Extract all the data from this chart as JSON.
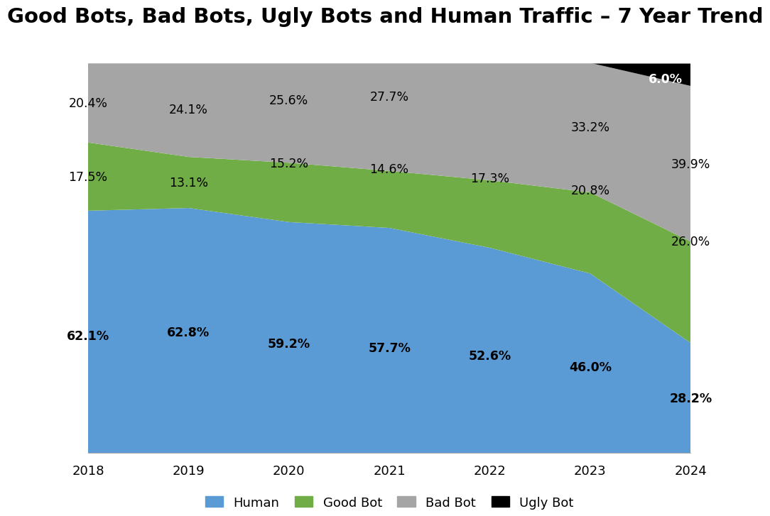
{
  "title": "Good Bots, Bad Bots, Ugly Bots and Human Traffic – 7 Year Trend",
  "years": [
    2018,
    2019,
    2020,
    2021,
    2022,
    2023,
    2024
  ],
  "human": [
    62.1,
    62.8,
    59.2,
    57.7,
    52.6,
    46.0,
    28.2
  ],
  "good_bot": [
    17.5,
    13.1,
    15.2,
    14.6,
    17.3,
    20.8,
    26.0
  ],
  "bad_bot": [
    20.4,
    24.1,
    25.6,
    27.7,
    30.1,
    33.2,
    39.9
  ],
  "ugly_bot": [
    0.0,
    0.0,
    0.0,
    0.0,
    0.0,
    0.0,
    6.0
  ],
  "human_color": "#5B9BD5",
  "good_bot_color": "#70AD47",
  "bad_bot_color": "#A5A5A5",
  "ugly_bot_color": "#000000",
  "bg_color": "#FFFFFF",
  "title_fontsize": 21,
  "label_fontsize": 12.5,
  "axis_label_fontsize": 13,
  "human_labels": [
    [
      2018,
      "62.1%"
    ],
    [
      2019,
      "62.8%"
    ],
    [
      2020,
      "59.2%"
    ],
    [
      2021,
      "57.7%"
    ],
    [
      2022,
      "52.6%"
    ],
    [
      2023,
      "46.0%"
    ],
    [
      2024,
      "28.2%"
    ]
  ],
  "good_bot_labels": [
    [
      2018,
      "17.5%"
    ],
    [
      2019,
      "13.1%"
    ],
    [
      2020,
      "15.2%"
    ],
    [
      2021,
      "14.6%"
    ],
    [
      2022,
      "17.3%"
    ],
    [
      2023,
      "20.8%"
    ],
    [
      2024,
      "26.0%"
    ]
  ],
  "bad_bot_labels": [
    [
      2018,
      "20.4%"
    ],
    [
      2019,
      "24.1%"
    ],
    [
      2020,
      "25.6%"
    ],
    [
      2021,
      "27.7%"
    ],
    [
      2023,
      "33.2%"
    ],
    [
      2024,
      "39.9%"
    ]
  ],
  "ugly_bot_label": "6.0%"
}
